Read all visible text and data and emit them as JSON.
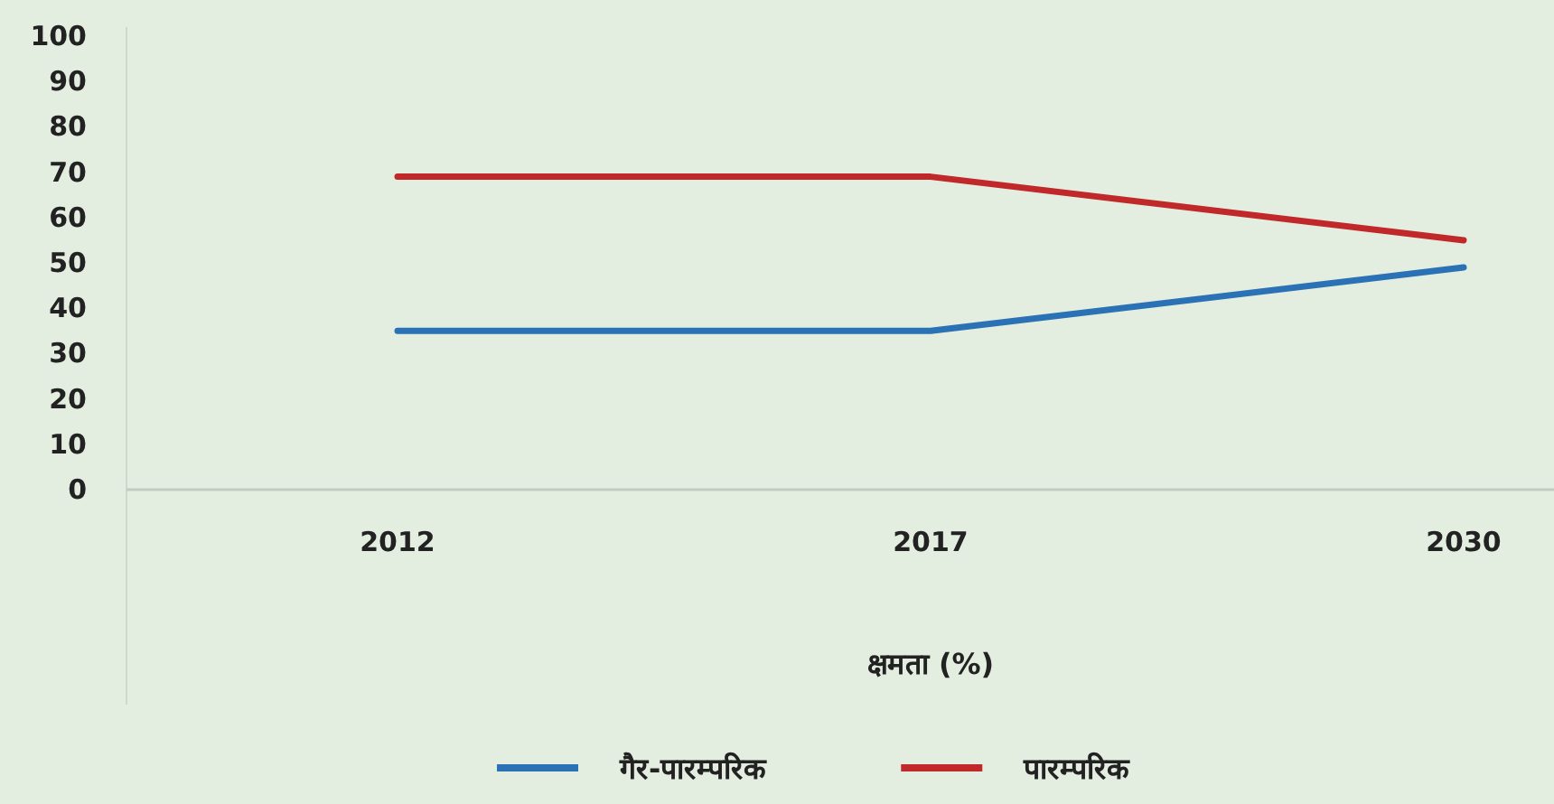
{
  "chart_data": {
    "type": "line",
    "xlabel": "क्षमता (%)",
    "categories": [
      "2012",
      "2017",
      "2030"
    ],
    "series": [
      {
        "name": "गैर-पारम्परिक",
        "color": "#2a72b5",
        "values": [
          35,
          35,
          49
        ]
      },
      {
        "name": "पारम्परिक",
        "color": "#c0282a",
        "values": [
          69,
          69,
          55
        ]
      }
    ],
    "ylim": [
      0,
      100
    ],
    "yticks": [
      0,
      10,
      20,
      30,
      40,
      50,
      60,
      70,
      80,
      90,
      100
    ],
    "grid": false,
    "legend": "bottom",
    "marker": "none",
    "line_style": "solid"
  }
}
